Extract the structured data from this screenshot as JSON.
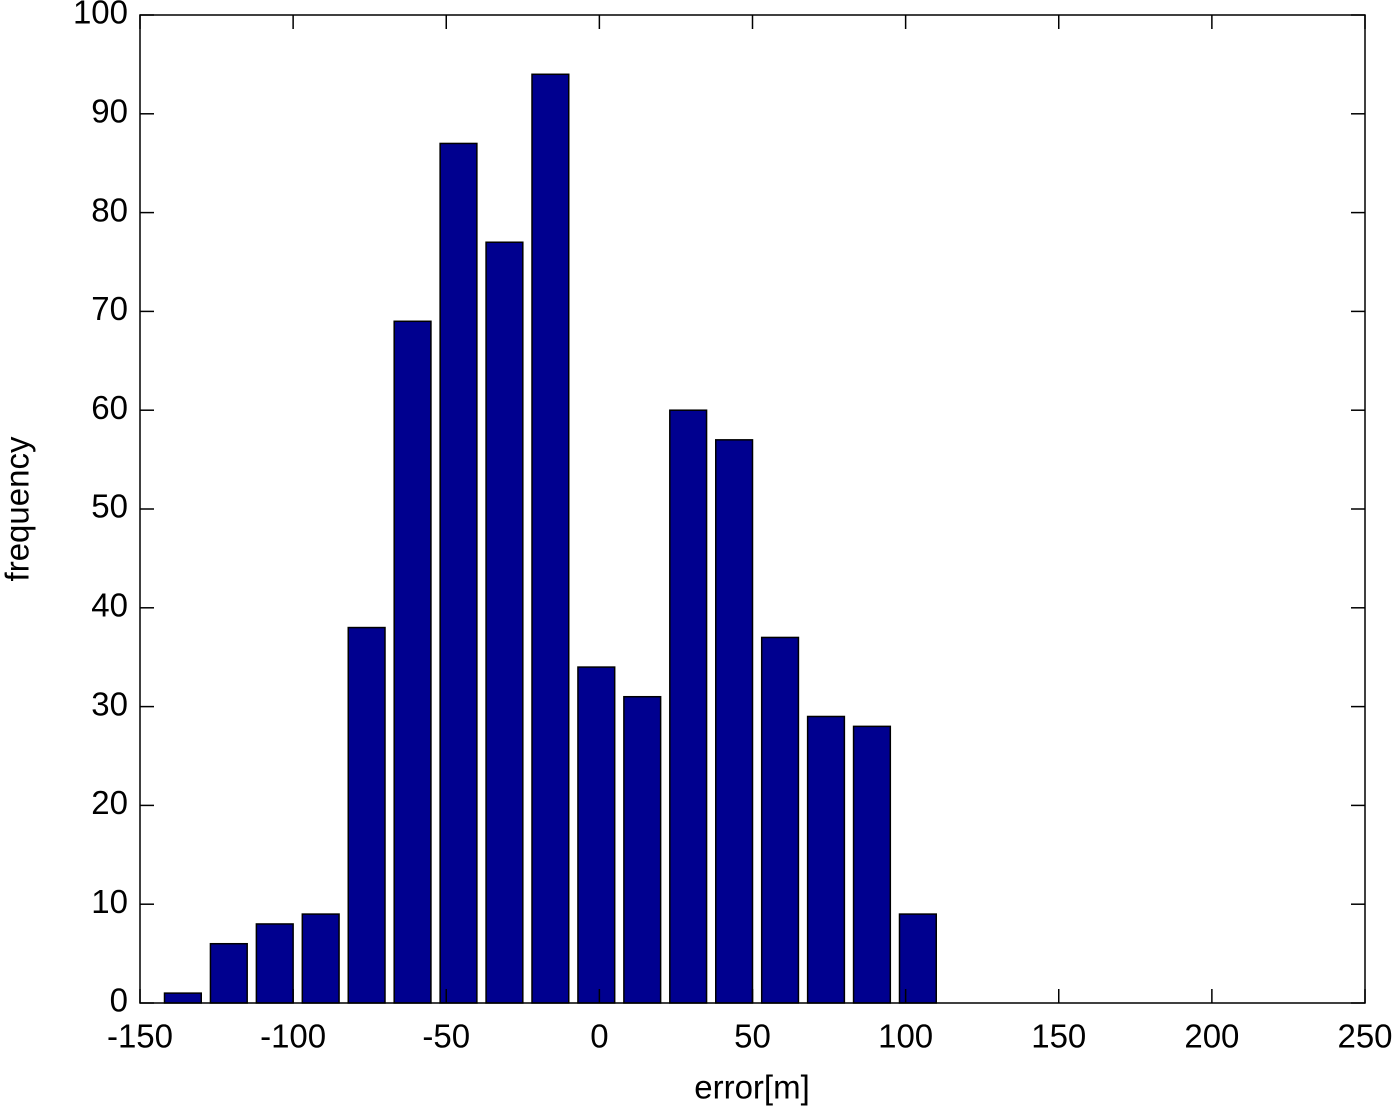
{
  "chart_data": {
    "type": "bar",
    "x": [
      -136,
      -121,
      -106,
      -91,
      -76,
      -61,
      -46,
      -31,
      -16,
      -1,
      14,
      29,
      44,
      59,
      74,
      89,
      104
    ],
    "values": [
      1,
      6,
      8,
      9,
      38,
      69,
      87,
      77,
      94,
      34,
      31,
      60,
      57,
      37,
      29,
      28,
      9
    ],
    "color": "#00008f",
    "xlabel": "error[m]",
    "ylabel": "frequency",
    "xlim": [
      -150,
      250
    ],
    "xticks": [
      -150,
      -100,
      -50,
      0,
      50,
      100,
      150,
      200,
      250
    ],
    "ylim": [
      0,
      100
    ],
    "yticks": [
      0,
      10,
      20,
      30,
      40,
      50,
      60,
      70,
      80,
      90,
      100
    ],
    "grid": false
  }
}
